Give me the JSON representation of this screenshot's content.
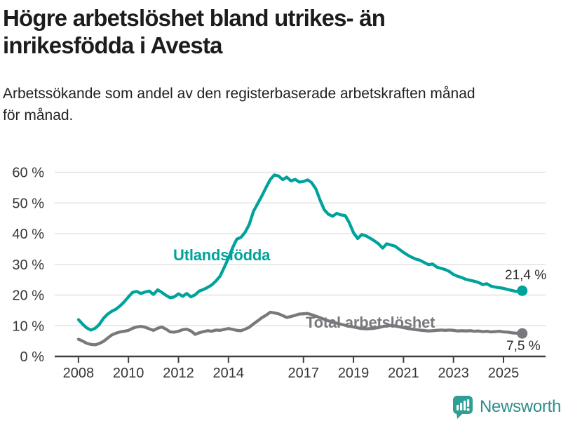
{
  "header": {
    "title_lines": [
      "Högre arbetslöshet bland utrikes- än",
      "inrikesfödda i Avesta"
    ],
    "subtitle_lines": [
      "Arbetssökande som andel av den registerbaserade arbetskraften månad",
      "för månad."
    ]
  },
  "footer": {
    "brand": "Newsworthy"
  },
  "colors": {
    "accent_teal": "#00a39b",
    "series_gray": "#7a787c",
    "grid": "#e3e3e3",
    "axis": "#3f3f3f",
    "tick_text": "#363636",
    "value_text": "#2b2b2b",
    "logo_icon": "#2f9e96",
    "logo_text": "#2e8d89"
  },
  "chart_data": {
    "type": "line",
    "title": "Högre arbetslöshet bland utrikes- än inrikesfödda i Avesta",
    "subtitle": "Arbetssökande som andel av den registerbaserade arbetskraften månad för månad.",
    "xlabel": "",
    "ylabel": "",
    "ylim": [
      0,
      60
    ],
    "xlim": [
      2007.05,
      2026.7
    ],
    "grid": "horizontal-only",
    "legend": "inline-labels-on-lines",
    "y_ticks": [
      {
        "v": 0,
        "label": "0 %"
      },
      {
        "v": 10,
        "label": "10 %"
      },
      {
        "v": 20,
        "label": "20 %"
      },
      {
        "v": 30,
        "label": "30 %"
      },
      {
        "v": 40,
        "label": "40 %"
      },
      {
        "v": 50,
        "label": "50 %"
      },
      {
        "v": 60,
        "label": "60 %"
      }
    ],
    "x_ticks": [
      {
        "v": 2008,
        "label": "2008"
      },
      {
        "v": 2010,
        "label": "2010"
      },
      {
        "v": 2012,
        "label": "2012"
      },
      {
        "v": 2014,
        "label": "2014"
      },
      {
        "v": 2017,
        "label": "2017"
      },
      {
        "v": 2019,
        "label": "2019"
      },
      {
        "v": 2021,
        "label": "2021"
      },
      {
        "v": 2023,
        "label": "2023"
      },
      {
        "v": 2025,
        "label": "2025"
      }
    ],
    "series": [
      {
        "name": "Utlandsfödda",
        "color": "#00a39b",
        "end_label": "21,4 %",
        "end_value": 21.4,
        "points": [
          [
            2008.0,
            12.0
          ],
          [
            2008.17,
            10.5
          ],
          [
            2008.33,
            9.3
          ],
          [
            2008.5,
            8.6
          ],
          [
            2008.67,
            9.2
          ],
          [
            2008.83,
            10.4
          ],
          [
            2009.0,
            12.4
          ],
          [
            2009.17,
            13.8
          ],
          [
            2009.33,
            14.7
          ],
          [
            2009.5,
            15.4
          ],
          [
            2009.67,
            16.5
          ],
          [
            2009.83,
            17.8
          ],
          [
            2010.0,
            19.4
          ],
          [
            2010.17,
            20.9
          ],
          [
            2010.33,
            21.2
          ],
          [
            2010.5,
            20.5
          ],
          [
            2010.67,
            21.0
          ],
          [
            2010.83,
            21.3
          ],
          [
            2011.0,
            20.2
          ],
          [
            2011.17,
            21.7
          ],
          [
            2011.33,
            20.9
          ],
          [
            2011.5,
            19.9
          ],
          [
            2011.67,
            19.1
          ],
          [
            2011.83,
            19.4
          ],
          [
            2012.0,
            20.4
          ],
          [
            2012.17,
            19.6
          ],
          [
            2012.33,
            20.5
          ],
          [
            2012.5,
            19.4
          ],
          [
            2012.67,
            20.1
          ],
          [
            2012.83,
            21.3
          ],
          [
            2013.0,
            21.8
          ],
          [
            2013.17,
            22.5
          ],
          [
            2013.33,
            23.3
          ],
          [
            2013.5,
            24.6
          ],
          [
            2013.67,
            26.2
          ],
          [
            2013.83,
            29.0
          ],
          [
            2014.0,
            32.0
          ],
          [
            2014.17,
            35.5
          ],
          [
            2014.33,
            38.2
          ],
          [
            2014.5,
            38.8
          ],
          [
            2014.67,
            40.5
          ],
          [
            2014.83,
            43.0
          ],
          [
            2015.0,
            47.3
          ],
          [
            2015.17,
            49.8
          ],
          [
            2015.33,
            52.2
          ],
          [
            2015.5,
            55.0
          ],
          [
            2015.67,
            57.6
          ],
          [
            2015.83,
            59.1
          ],
          [
            2016.0,
            58.8
          ],
          [
            2016.17,
            57.6
          ],
          [
            2016.33,
            58.4
          ],
          [
            2016.5,
            57.2
          ],
          [
            2016.67,
            57.7
          ],
          [
            2016.83,
            56.8
          ],
          [
            2017.0,
            57.0
          ],
          [
            2017.17,
            57.5
          ],
          [
            2017.33,
            56.6
          ],
          [
            2017.5,
            54.5
          ],
          [
            2017.67,
            50.8
          ],
          [
            2017.83,
            47.8
          ],
          [
            2018.0,
            46.3
          ],
          [
            2018.17,
            45.7
          ],
          [
            2018.33,
            46.6
          ],
          [
            2018.5,
            46.1
          ],
          [
            2018.67,
            45.9
          ],
          [
            2018.83,
            43.6
          ],
          [
            2019.0,
            40.3
          ],
          [
            2019.17,
            38.4
          ],
          [
            2019.33,
            39.7
          ],
          [
            2019.5,
            39.3
          ],
          [
            2019.67,
            38.5
          ],
          [
            2019.83,
            37.7
          ],
          [
            2020.0,
            36.7
          ],
          [
            2020.17,
            35.3
          ],
          [
            2020.33,
            36.7
          ],
          [
            2020.5,
            36.3
          ],
          [
            2020.67,
            35.9
          ],
          [
            2020.83,
            34.9
          ],
          [
            2021.0,
            33.9
          ],
          [
            2021.17,
            33.0
          ],
          [
            2021.33,
            32.3
          ],
          [
            2021.5,
            31.7
          ],
          [
            2021.67,
            31.3
          ],
          [
            2021.83,
            30.6
          ],
          [
            2022.0,
            29.9
          ],
          [
            2022.17,
            30.1
          ],
          [
            2022.33,
            29.1
          ],
          [
            2022.5,
            28.7
          ],
          [
            2022.67,
            28.3
          ],
          [
            2022.83,
            27.7
          ],
          [
            2023.0,
            26.7
          ],
          [
            2023.17,
            26.1
          ],
          [
            2023.33,
            25.7
          ],
          [
            2023.5,
            25.1
          ],
          [
            2023.67,
            24.8
          ],
          [
            2023.83,
            24.5
          ],
          [
            2024.0,
            24.1
          ],
          [
            2024.17,
            23.4
          ],
          [
            2024.33,
            23.7
          ],
          [
            2024.5,
            22.9
          ],
          [
            2024.67,
            22.6
          ],
          [
            2024.83,
            22.4
          ],
          [
            2025.0,
            22.2
          ],
          [
            2025.17,
            21.8
          ],
          [
            2025.33,
            21.5
          ],
          [
            2025.5,
            21.2
          ],
          [
            2025.67,
            21.3
          ],
          [
            2025.75,
            21.4
          ]
        ]
      },
      {
        "name": "Total arbetslöshet",
        "color": "#7a787c",
        "end_label": "7,5 %",
        "end_value": 7.5,
        "points": [
          [
            2008.0,
            5.6
          ],
          [
            2008.17,
            5.0
          ],
          [
            2008.33,
            4.3
          ],
          [
            2008.5,
            3.9
          ],
          [
            2008.67,
            3.8
          ],
          [
            2008.83,
            4.2
          ],
          [
            2009.0,
            4.9
          ],
          [
            2009.17,
            6.0
          ],
          [
            2009.33,
            7.0
          ],
          [
            2009.5,
            7.6
          ],
          [
            2009.67,
            8.0
          ],
          [
            2009.83,
            8.2
          ],
          [
            2010.0,
            8.5
          ],
          [
            2010.17,
            9.2
          ],
          [
            2010.33,
            9.6
          ],
          [
            2010.5,
            9.8
          ],
          [
            2010.67,
            9.5
          ],
          [
            2010.83,
            9.0
          ],
          [
            2011.0,
            8.5
          ],
          [
            2011.17,
            9.2
          ],
          [
            2011.33,
            9.6
          ],
          [
            2011.5,
            8.9
          ],
          [
            2011.67,
            8.0
          ],
          [
            2011.83,
            7.9
          ],
          [
            2012.0,
            8.2
          ],
          [
            2012.17,
            8.7
          ],
          [
            2012.33,
            8.9
          ],
          [
            2012.5,
            8.3
          ],
          [
            2012.67,
            7.2
          ],
          [
            2012.83,
            7.7
          ],
          [
            2013.0,
            8.1
          ],
          [
            2013.17,
            8.4
          ],
          [
            2013.33,
            8.2
          ],
          [
            2013.5,
            8.6
          ],
          [
            2013.67,
            8.5
          ],
          [
            2013.83,
            8.8
          ],
          [
            2014.0,
            9.1
          ],
          [
            2014.17,
            8.8
          ],
          [
            2014.33,
            8.5
          ],
          [
            2014.5,
            8.4
          ],
          [
            2014.67,
            8.9
          ],
          [
            2014.83,
            9.5
          ],
          [
            2015.0,
            10.6
          ],
          [
            2015.17,
            11.6
          ],
          [
            2015.33,
            12.6
          ],
          [
            2015.5,
            13.4
          ],
          [
            2015.67,
            14.4
          ],
          [
            2015.83,
            14.2
          ],
          [
            2016.0,
            13.9
          ],
          [
            2016.17,
            13.3
          ],
          [
            2016.33,
            12.7
          ],
          [
            2016.5,
            13.0
          ],
          [
            2016.67,
            13.4
          ],
          [
            2016.83,
            13.8
          ],
          [
            2017.0,
            13.9
          ],
          [
            2017.17,
            14.0
          ],
          [
            2017.33,
            13.6
          ],
          [
            2017.5,
            13.1
          ],
          [
            2017.67,
            12.6
          ],
          [
            2017.83,
            12.1
          ],
          [
            2018.0,
            11.6
          ],
          [
            2018.25,
            11.0
          ],
          [
            2018.5,
            10.5
          ],
          [
            2018.75,
            10.0
          ],
          [
            2019.0,
            9.6
          ],
          [
            2019.25,
            9.2
          ],
          [
            2019.5,
            9.0
          ],
          [
            2019.75,
            9.1
          ],
          [
            2020.0,
            9.4
          ],
          [
            2020.25,
            9.9
          ],
          [
            2020.5,
            10.1
          ],
          [
            2020.75,
            9.8
          ],
          [
            2021.0,
            9.4
          ],
          [
            2021.25,
            9.0
          ],
          [
            2021.5,
            8.7
          ],
          [
            2021.75,
            8.5
          ],
          [
            2022.0,
            8.3
          ],
          [
            2022.17,
            8.4
          ],
          [
            2022.33,
            8.5
          ],
          [
            2022.5,
            8.6
          ],
          [
            2022.67,
            8.5
          ],
          [
            2022.83,
            8.6
          ],
          [
            2023.0,
            8.5
          ],
          [
            2023.17,
            8.3
          ],
          [
            2023.33,
            8.4
          ],
          [
            2023.5,
            8.3
          ],
          [
            2023.67,
            8.4
          ],
          [
            2023.83,
            8.2
          ],
          [
            2024.0,
            8.3
          ],
          [
            2024.17,
            8.1
          ],
          [
            2024.33,
            8.2
          ],
          [
            2024.5,
            8.0
          ],
          [
            2024.67,
            8.1
          ],
          [
            2024.83,
            8.2
          ],
          [
            2025.0,
            8.0
          ],
          [
            2025.17,
            7.9
          ],
          [
            2025.33,
            7.7
          ],
          [
            2025.5,
            7.6
          ],
          [
            2025.67,
            7.5
          ],
          [
            2025.75,
            7.5
          ]
        ]
      }
    ]
  }
}
